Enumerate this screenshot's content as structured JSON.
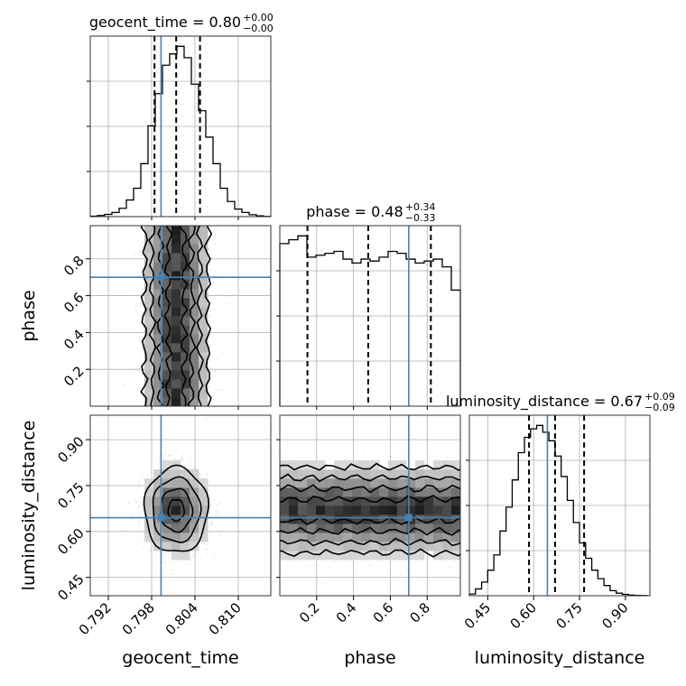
{
  "chart_data": {
    "type": "corner",
    "parameters": [
      "geocent_time",
      "phase",
      "luminosity_distance"
    ],
    "truths": {
      "geocent_time": 0.7993,
      "phase": 0.7,
      "luminosity_distance": 0.645
    },
    "titles": [
      {
        "param": "geocent_time",
        "text": "geocent_time = 0.80",
        "sup": "+0.00",
        "sub": "−0.00"
      },
      {
        "param": "phase",
        "text": "phase = 0.48",
        "sup": "+0.34",
        "sub": "−0.33"
      },
      {
        "param": "luminosity_distance",
        "text": "luminosity_distance = 0.67",
        "sup": "+0.09",
        "sub": "−0.09"
      }
    ],
    "axes": {
      "geocent_time": {
        "range": [
          0.7895,
          0.8145
        ],
        "ticks": [
          0.792,
          0.798,
          0.804,
          0.81
        ],
        "tick_labels": [
          "0.792",
          "0.798",
          "0.804",
          "0.810"
        ],
        "label": "geocent_time"
      },
      "phase": {
        "range": [
          0.0,
          0.98
        ],
        "ticks": [
          0.2,
          0.4,
          0.6,
          0.8
        ],
        "tick_labels": [
          "0.2",
          "0.4",
          "0.6",
          "0.8"
        ],
        "label": "phase"
      },
      "luminosity_distance": {
        "range": [
          0.39,
          0.98
        ],
        "ticks": [
          0.45,
          0.6,
          0.75,
          0.9
        ],
        "tick_labels": [
          "0.45",
          "0.60",
          "0.75",
          "0.90"
        ],
        "label": "luminosity_distance"
      }
    },
    "histograms": {
      "geocent_time": {
        "quantiles": [
          0.7984,
          0.8014,
          0.8047
        ],
        "bin_edges": [
          0.7895,
          0.7905,
          0.7915,
          0.7925,
          0.7935,
          0.7945,
          0.7955,
          0.7965,
          0.7975,
          0.7985,
          0.7995,
          0.8005,
          0.8015,
          0.8025,
          0.8035,
          0.8045,
          0.8055,
          0.8065,
          0.8075,
          0.8085,
          0.8095,
          0.8105,
          0.8115,
          0.8125,
          0.8135,
          0.8145
        ],
        "counts": [
          2,
          6,
          12,
          22,
          44,
          88,
          150,
          280,
          480,
          650,
          800,
          860,
          900,
          840,
          700,
          560,
          420,
          280,
          150,
          80,
          40,
          22,
          10,
          4,
          1
        ]
      },
      "phase": {
        "quantiles": [
          0.15,
          0.48,
          0.82
        ],
        "bin_edges": [
          0.0,
          0.049,
          0.098,
          0.147,
          0.196,
          0.245,
          0.294,
          0.343,
          0.392,
          0.441,
          0.49,
          0.539,
          0.588,
          0.637,
          0.686,
          0.735,
          0.784,
          0.833,
          0.882,
          0.931,
          0.98
        ],
        "counts": [
          840,
          860,
          880,
          770,
          780,
          790,
          800,
          760,
          740,
          760,
          750,
          770,
          800,
          790,
          760,
          740,
          750,
          760,
          720,
          600
        ]
      },
      "luminosity_distance": {
        "quantiles": [
          0.585,
          0.67,
          0.765
        ],
        "bin_edges": [
          0.39,
          0.41,
          0.43,
          0.45,
          0.47,
          0.49,
          0.51,
          0.53,
          0.55,
          0.57,
          0.59,
          0.61,
          0.63,
          0.65,
          0.67,
          0.69,
          0.71,
          0.73,
          0.75,
          0.77,
          0.79,
          0.81,
          0.83,
          0.85,
          0.87,
          0.89,
          0.91,
          0.93,
          0.95,
          0.97
        ],
        "counts": [
          10,
          40,
          80,
          150,
          240,
          380,
          520,
          680,
          840,
          930,
          980,
          1000,
          960,
          910,
          820,
          700,
          560,
          430,
          310,
          220,
          150,
          100,
          60,
          30,
          15,
          8,
          4,
          2,
          1
        ]
      }
    },
    "joint_2d": [
      {
        "x": "geocent_time",
        "y": "phase",
        "x_center": 0.8014,
        "x_sigma": 0.0022,
        "y_range": [
          0.0,
          0.98
        ],
        "correlation": 0.0
      },
      {
        "x": "geocent_time",
        "y": "luminosity_distance",
        "x_center": 0.8014,
        "x_sigma": 0.0022,
        "y_center": 0.67,
        "y_sigma": 0.07,
        "correlation": 0.0
      },
      {
        "x": "phase",
        "y": "luminosity_distance",
        "x_range": [
          0.0,
          0.98
        ],
        "y_center": 0.67,
        "y_sigma": 0.07,
        "correlation": 0.0
      }
    ],
    "contour_levels": [
      0.118,
      0.393,
      0.675,
      0.864
    ]
  }
}
